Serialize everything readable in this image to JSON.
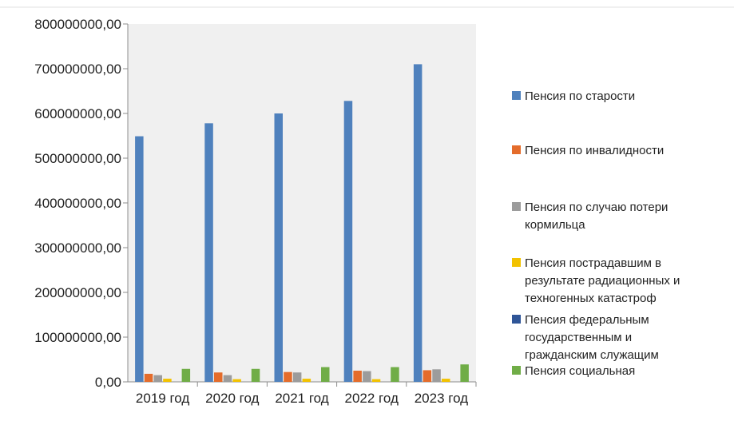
{
  "chart_data": {
    "type": "bar",
    "categories": [
      "2019 год",
      "2020 год",
      "2021 год",
      "2022 год",
      "2023 год"
    ],
    "series": [
      {
        "name": "Пенсия по старости",
        "color": "#4f81bd",
        "values": [
          549000000,
          578000000,
          600000000,
          628000000,
          710000000
        ]
      },
      {
        "name": "Пенсия по инвалидности",
        "color": "#e46c2b",
        "values": [
          18000000,
          21000000,
          22000000,
          25000000,
          26000000
        ]
      },
      {
        "name": "Пенсия по случаю потери кормильца",
        "color": "#9c9c9c",
        "values": [
          15000000,
          15000000,
          21000000,
          24000000,
          28000000
        ]
      },
      {
        "name": "Пенсия пострадавшим в результате радиационных и техногенных катастроф",
        "color": "#f2c200",
        "values": [
          7000000,
          6000000,
          7000000,
          6000000,
          7000000
        ]
      },
      {
        "name": "Пенсия федеральным государственным гражданским служащим",
        "color": "#2f5597",
        "values": [
          0,
          0,
          0,
          0,
          0
        ]
      },
      {
        "name": "Пенсия социальная",
        "color": "#70ad47",
        "values": [
          29000000,
          29000000,
          33000000,
          33000000,
          39000000
        ]
      }
    ],
    "y_ticks": [
      "0,00",
      "100000000,00",
      "200000000,00",
      "300000000,00",
      "400000000,00",
      "500000000,00",
      "600000000,00",
      "700000000,00",
      "800000000,00"
    ],
    "ylim": [
      0,
      800000000
    ],
    "grid": false,
    "plot_background": "#f0f0f0",
    "legend_position": "right"
  }
}
